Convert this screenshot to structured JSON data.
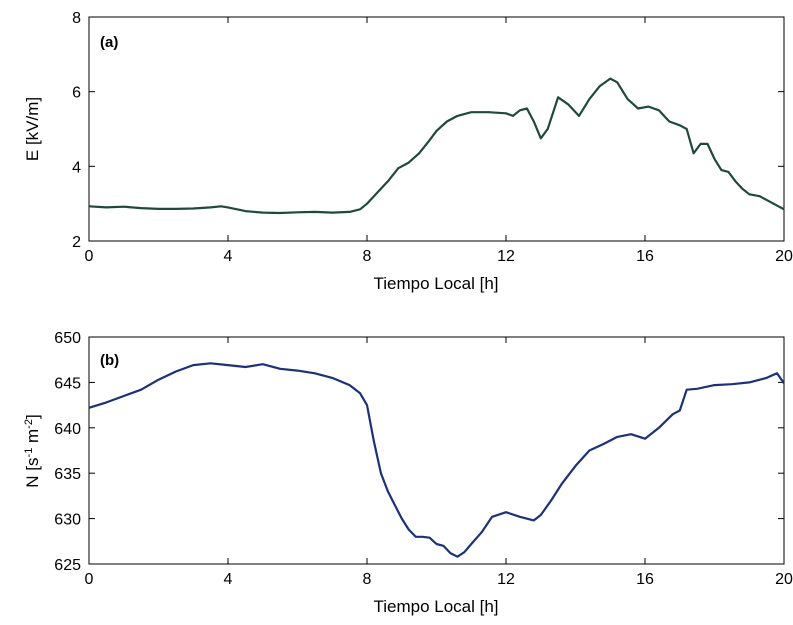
{
  "chart_data": [
    {
      "type": "line",
      "panel_label": "(a)",
      "xlabel": "Tiempo Local [h]",
      "ylabel": "E  [kV/m]",
      "xlim": [
        0,
        20
      ],
      "ylim": [
        2,
        8
      ],
      "xticks": [
        0,
        4,
        8,
        12,
        16,
        20
      ],
      "yticks": [
        2,
        4,
        6,
        8
      ],
      "grid": false,
      "series": [
        {
          "color": "#1f4a3a",
          "x": [
            0,
            0.5,
            1,
            1.5,
            2,
            2.5,
            3,
            3.5,
            3.8,
            4,
            4.5,
            5,
            5.5,
            6,
            6.5,
            7,
            7.5,
            7.8,
            8,
            8.3,
            8.6,
            8.9,
            9.2,
            9.5,
            9.8,
            10,
            10.3,
            10.6,
            11,
            11.5,
            12,
            12.2,
            12.4,
            12.6,
            12.8,
            13.0,
            13.2,
            13.5,
            13.8,
            14.1,
            14.4,
            14.7,
            15.0,
            15.2,
            15.5,
            15.8,
            16.1,
            16.4,
            16.7,
            17.0,
            17.2,
            17.4,
            17.6,
            17.8,
            18.0,
            18.2,
            18.4,
            18.6,
            18.8,
            19.0,
            19.3,
            19.6,
            20
          ],
          "y": [
            2.93,
            2.9,
            2.92,
            2.88,
            2.86,
            2.86,
            2.87,
            2.9,
            2.93,
            2.9,
            2.8,
            2.76,
            2.75,
            2.77,
            2.78,
            2.76,
            2.78,
            2.85,
            3.0,
            3.3,
            3.6,
            3.95,
            4.1,
            4.35,
            4.7,
            4.95,
            5.2,
            5.35,
            5.45,
            5.45,
            5.42,
            5.35,
            5.5,
            5.55,
            5.2,
            4.75,
            5.0,
            5.85,
            5.65,
            5.35,
            5.8,
            6.15,
            6.35,
            6.25,
            5.8,
            5.55,
            5.6,
            5.5,
            5.2,
            5.1,
            5.0,
            4.35,
            4.6,
            4.6,
            4.2,
            3.9,
            3.85,
            3.6,
            3.4,
            3.25,
            3.2,
            3.05,
            2.85
          ]
        }
      ]
    },
    {
      "type": "line",
      "panel_label": "(b)",
      "xlabel": "Tiempo Local [h]",
      "ylabel": "N  [s",
      "ylabel_sup1": "-1",
      "ylabel_mid": " m",
      "ylabel_sup2": "-2",
      "ylabel_end": "]",
      "xlim": [
        0,
        20
      ],
      "ylim": [
        625,
        650
      ],
      "xticks": [
        0,
        4,
        8,
        12,
        16,
        20
      ],
      "yticks": [
        625,
        630,
        635,
        640,
        645,
        650
      ],
      "grid": false,
      "series": [
        {
          "color": "#1c3278",
          "x": [
            0,
            0.5,
            1,
            1.5,
            2,
            2.5,
            3,
            3.5,
            4,
            4.5,
            5,
            5.5,
            6,
            6.5,
            7,
            7.5,
            7.8,
            8,
            8.2,
            8.4,
            8.6,
            8.8,
            9,
            9.2,
            9.4,
            9.6,
            9.8,
            10,
            10.2,
            10.4,
            10.6,
            10.8,
            11,
            11.3,
            11.6,
            12,
            12.4,
            12.8,
            13.0,
            13.3,
            13.6,
            14.0,
            14.4,
            14.8,
            15.2,
            15.6,
            16.0,
            16.4,
            16.8,
            17.0,
            17.2,
            17.5,
            18.0,
            18.5,
            19.0,
            19.5,
            19.8,
            20
          ],
          "y": [
            642.2,
            642.8,
            643.5,
            644.2,
            645.3,
            646.2,
            646.9,
            647.1,
            646.9,
            646.7,
            647.0,
            646.5,
            646.3,
            646.0,
            645.5,
            644.7,
            643.8,
            642.5,
            638.5,
            635.0,
            633.0,
            631.5,
            630.0,
            628.8,
            628.0,
            628.0,
            627.9,
            627.2,
            627.0,
            626.2,
            625.8,
            626.3,
            627.2,
            628.5,
            630.2,
            630.7,
            630.2,
            629.8,
            630.4,
            632.0,
            633.8,
            635.8,
            637.5,
            638.2,
            639.0,
            639.3,
            638.8,
            640.0,
            641.5,
            641.9,
            644.2,
            644.3,
            644.7,
            644.8,
            645.0,
            645.5,
            646.0,
            644.9
          ]
        }
      ]
    }
  ]
}
